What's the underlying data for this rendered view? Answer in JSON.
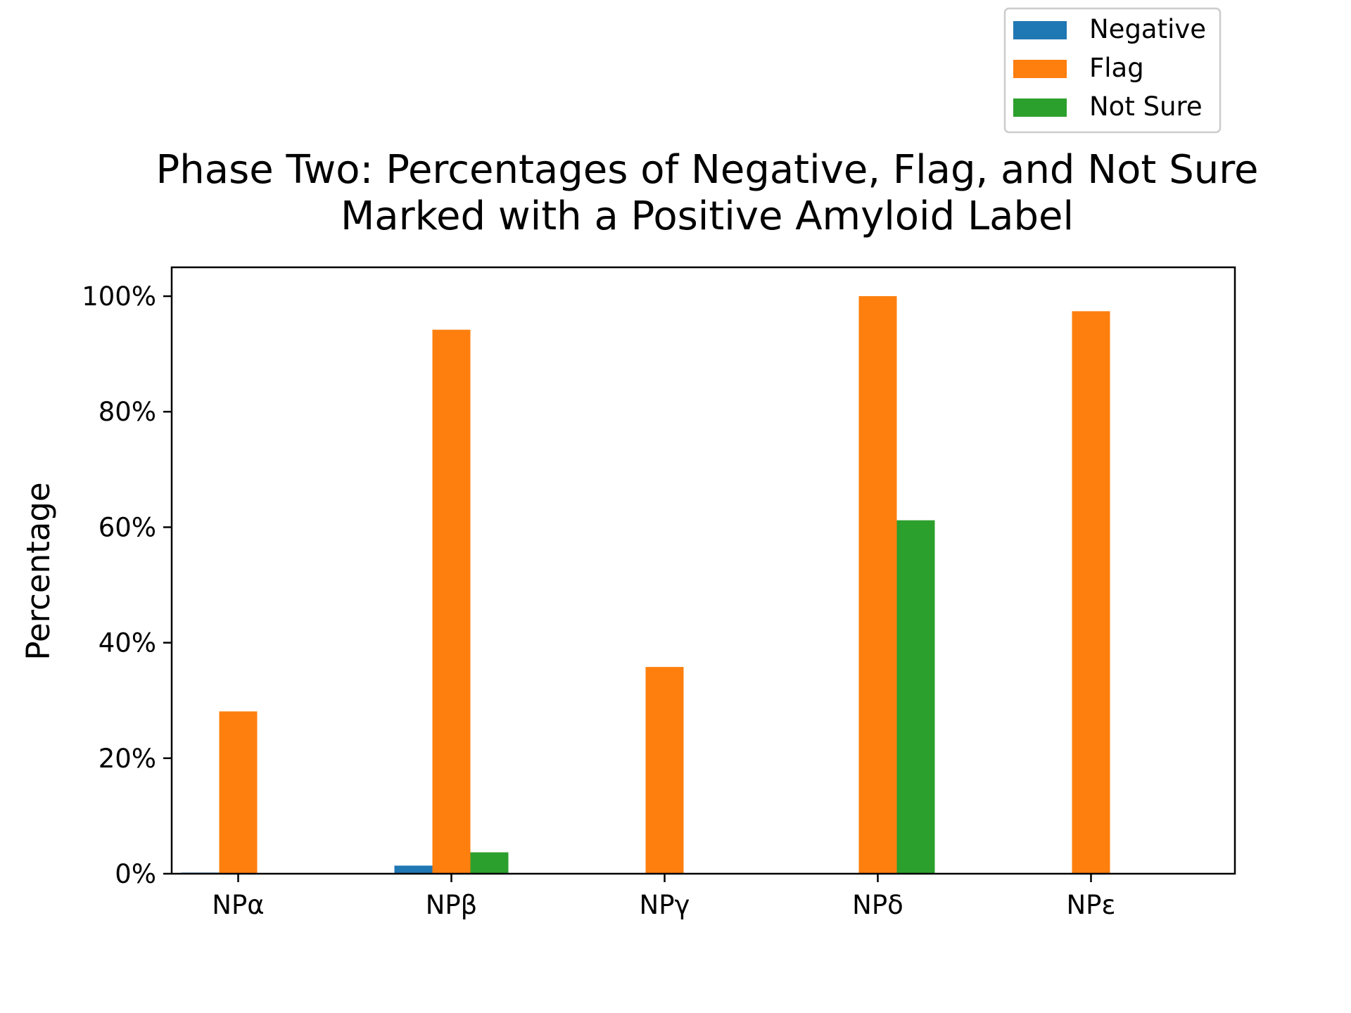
{
  "chart_data": {
    "type": "bar",
    "title_line1": "Phase Two: Percentages of Negative, Flag, and Not Sure",
    "title_line2": "Marked with a Positive Amyloid Label",
    "xlabel": "",
    "ylabel": "Percentage",
    "categories": [
      "NPα",
      "NPβ",
      "NPγ",
      "NPδ",
      "NPε"
    ],
    "series": [
      {
        "name": "Negative",
        "color": "#1f77b4",
        "values": [
          0.2,
          1.4,
          0,
          0,
          0
        ]
      },
      {
        "name": "Flag",
        "color": "#ff7f0e",
        "values": [
          28.1,
          94.2,
          35.8,
          100,
          97.4
        ]
      },
      {
        "name": "Not Sure",
        "color": "#2ca02c",
        "values": [
          0,
          3.7,
          0,
          61.2,
          0
        ]
      }
    ],
    "ylim": [
      0,
      105
    ],
    "yticks": [
      0,
      20,
      40,
      60,
      80,
      100
    ],
    "ytick_labels": [
      "0%",
      "20%",
      "40%",
      "60%",
      "80%",
      "100%"
    ],
    "legend_position": "top-right",
    "grid": false
  }
}
